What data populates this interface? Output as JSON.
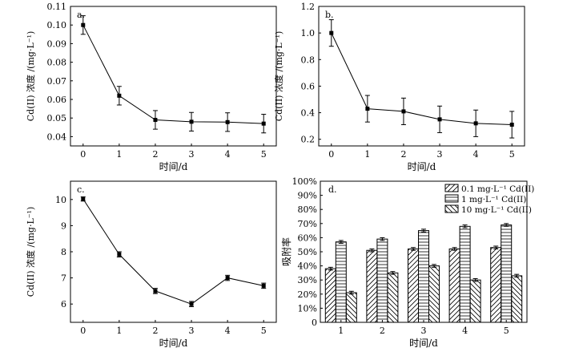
{
  "chart_data": [
    {
      "panel": "a.",
      "type": "line",
      "x": [
        0,
        1,
        2,
        3,
        4,
        5
      ],
      "values": [
        0.1,
        0.062,
        0.049,
        0.048,
        0.0478,
        0.047
      ],
      "errors": [
        0.005,
        0.005,
        0.005,
        0.005,
        0.005,
        0.005
      ],
      "xlabel": "时间/d",
      "ylabel": "Cd(II) 浓度 /(mg·L⁻¹)",
      "xlim": [
        -0.35,
        5.35
      ],
      "ylim": [
        0.035,
        0.11
      ],
      "xticks": [
        "0",
        "1",
        "2",
        "3",
        "4",
        "5"
      ],
      "yticks": [
        "0.04",
        "0.05",
        "0.06",
        "0.07",
        "0.08",
        "0.09",
        "0.10",
        "0.11"
      ]
    },
    {
      "panel": "b.",
      "type": "line",
      "x": [
        0,
        1,
        2,
        3,
        4,
        5
      ],
      "values": [
        1.0,
        0.43,
        0.41,
        0.35,
        0.32,
        0.31
      ],
      "errors": [
        0.1,
        0.1,
        0.1,
        0.1,
        0.1,
        0.1
      ],
      "xlabel": "时间/d",
      "ylabel": "Cd(II) 浓度 /(mg·L⁻¹)",
      "xlim": [
        -0.35,
        5.35
      ],
      "ylim": [
        0.15,
        1.2
      ],
      "xticks": [
        "0",
        "1",
        "2",
        "3",
        "4",
        "5"
      ],
      "yticks": [
        "0.2",
        "0.4",
        "0.6",
        "0.8",
        "1.0",
        "1.2"
      ]
    },
    {
      "panel": "c.",
      "type": "line",
      "x": [
        0,
        1,
        2,
        3,
        4,
        5
      ],
      "values": [
        10.02,
        7.9,
        6.5,
        6.0,
        7.0,
        6.7
      ],
      "errors": [
        0.08,
        0.1,
        0.1,
        0.1,
        0.1,
        0.1
      ],
      "xlabel": "时间/d",
      "ylabel": "Cd(II) 浓度 /(mg·L⁻¹)",
      "xlim": [
        -0.35,
        5.35
      ],
      "ylim": [
        5.3,
        10.7
      ],
      "xticks": [
        "0",
        "1",
        "2",
        "3",
        "4",
        "5"
      ],
      "yticks": [
        "6",
        "7",
        "8",
        "9",
        "10"
      ]
    },
    {
      "panel": "d.",
      "type": "bar",
      "categories": [
        "1",
        "2",
        "3",
        "4",
        "5"
      ],
      "series": [
        {
          "name": "0.1 mg·L⁻¹ Cd(II)",
          "pattern": "hatch-diag",
          "values": [
            38,
            51,
            52,
            52,
            53
          ],
          "errors": [
            1,
            1,
            1,
            1,
            1
          ]
        },
        {
          "name": "1 mg·L⁻¹ Cd(II)",
          "pattern": "hatch-horiz",
          "values": [
            57,
            59,
            65,
            68,
            69
          ],
          "errors": [
            1,
            1,
            1,
            1,
            1
          ]
        },
        {
          "name": "10 mg·L⁻¹ Cd(II)",
          "pattern": "hatch-back",
          "values": [
            21,
            35,
            40,
            30,
            33
          ],
          "errors": [
            1,
            1,
            1,
            1,
            1
          ]
        }
      ],
      "xlabel": "时间/d",
      "ylabel": "吸附率",
      "ylim": [
        0,
        100
      ],
      "yticks": [
        "0",
        "10%",
        "20%",
        "30%",
        "40%",
        "50%",
        "60%",
        "70%",
        "80%",
        "90%",
        "100%"
      ],
      "legend": "top-right"
    }
  ]
}
